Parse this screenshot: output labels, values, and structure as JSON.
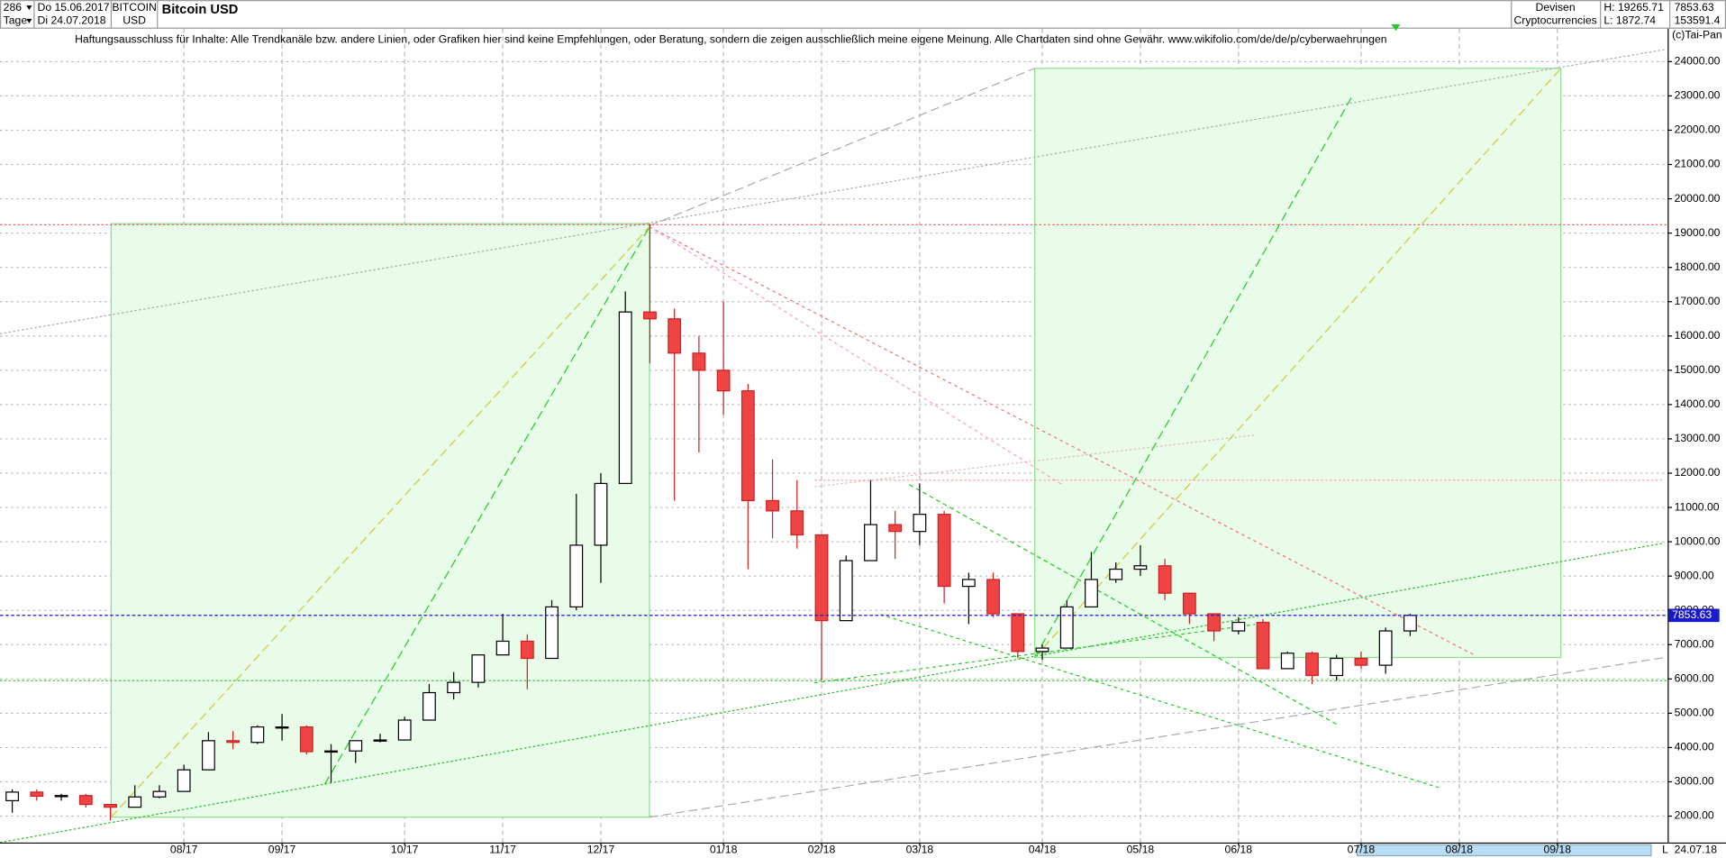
{
  "header": {
    "count": "286",
    "from_date": "Do 15.06.2017",
    "period": "Tage",
    "to_date": "Di 24.07.2018",
    "symbol": "BITCOIN",
    "currency": "USD",
    "name": "Bitcoin USD",
    "group": "Devisen",
    "subgroup": "Cryptocurrencies",
    "high": "H: 19265.71",
    "low": "L: 1872.74",
    "last": "7853.63",
    "volume": "153591.4"
  },
  "footer": {
    "marker": "L",
    "date": "24.07.18"
  },
  "chart_data": {
    "type": "candlestick",
    "annotations": [
      "Haftungsausschluss für Inhalte: Alle Trendkanäle bzw. andere Linien, oder Grafiken hier sind keine Empfehlungen, oder Beratung, sondern die zeigen ausschließlich meine eigene Meinung. Alle Chartdaten sind ohne Gewähr.  www.wikifolio.com/de/de/p/cyberwaehrungen",
      "(c)Tai-Pan"
    ],
    "categories": [
      null,
      null,
      null,
      null,
      null,
      null,
      null,
      "08/17",
      null,
      null,
      null,
      "09/17",
      null,
      null,
      null,
      null,
      "10/17",
      null,
      null,
      null,
      "11/17",
      null,
      null,
      null,
      "12/17",
      null,
      null,
      null,
      null,
      "01/18",
      null,
      null,
      null,
      "02/18",
      null,
      null,
      null,
      "03/18",
      null,
      null,
      null,
      null,
      "04/18",
      null,
      null,
      null,
      "05/18",
      null,
      null,
      null,
      "06/18",
      null,
      null,
      null,
      null,
      "07/18",
      null,
      null,
      null,
      "08/18",
      null,
      null,
      null,
      "09/18",
      null,
      null,
      null,
      null
    ],
    "open": [
      2450,
      2700,
      2580,
      2600,
      2340,
      2260,
      2560,
      2720,
      3350,
      4200,
      4150,
      4600,
      4600,
      3880,
      3900,
      4200,
      4220,
      4800,
      5600,
      5900,
      6700,
      7100,
      6600,
      8100,
      9900,
      11700,
      16700,
      16500,
      15500,
      15000,
      14400,
      11200,
      10900,
      10200,
      7700,
      9450,
      10500,
      10300,
      10800,
      8700,
      8900,
      7900,
      6800,
      6900,
      8100,
      8900,
      9200,
      9300,
      8500,
      7900,
      7400,
      7650,
      6300,
      6750,
      6100,
      6600,
      6400,
      7400,
      null,
      null,
      null,
      null,
      null,
      null,
      null,
      null,
      null,
      null
    ],
    "high": [
      2780,
      2780,
      2650,
      2650,
      2350,
      2900,
      2900,
      3500,
      4450,
      4480,
      4650,
      4980,
      4650,
      4100,
      4200,
      4400,
      4900,
      5850,
      6200,
      6700,
      7900,
      7300,
      8300,
      11400,
      12000,
      17300,
      19265.71,
      16800,
      16000,
      17000,
      14600,
      12400,
      11800,
      10200,
      9600,
      11800,
      10900,
      11700,
      10900,
      9100,
      9100,
      7900,
      7000,
      8300,
      9700,
      9400,
      9900,
      9500,
      8500,
      7900,
      7800,
      7750,
      6800,
      6800,
      6700,
      6800,
      7500,
      7900,
      null,
      null,
      null,
      null,
      null,
      null,
      null,
      null,
      null,
      null
    ],
    "low": [
      2100,
      2450,
      2450,
      2250,
      1872.74,
      2260,
      2520,
      2720,
      3350,
      3950,
      4100,
      4200,
      3800,
      2980,
      3550,
      4150,
      4220,
      4800,
      5400,
      5750,
      6700,
      5700,
      6600,
      8000,
      8800,
      11700,
      15200,
      11200,
      12600,
      13700,
      9200,
      10100,
      9800,
      5950,
      7700,
      9450,
      9500,
      9900,
      8200,
      7600,
      7800,
      6600,
      6550,
      6900,
      8100,
      8800,
      9000,
      8300,
      7600,
      7100,
      7300,
      6300,
      6300,
      5850,
      5950,
      6300,
      6150,
      7250,
      null,
      null,
      null,
      null,
      null,
      null,
      null,
      null,
      null,
      null
    ],
    "close": [
      2700,
      2580,
      2600,
      2340,
      2260,
      2560,
      2720,
      3350,
      4200,
      4150,
      4600,
      4600,
      3880,
      3900,
      4200,
      4220,
      4800,
      5600,
      5900,
      6700,
      7100,
      6600,
      8100,
      9900,
      11700,
      16700,
      16500,
      15500,
      15000,
      14400,
      11200,
      10900,
      10200,
      7700,
      9450,
      10500,
      10300,
      10800,
      8700,
      8900,
      7900,
      6800,
      6900,
      8100,
      8900,
      9200,
      9300,
      8500,
      7900,
      7400,
      7650,
      6300,
      6750,
      6100,
      6600,
      6400,
      7400,
      7853.63,
      null,
      null,
      null,
      null,
      null,
      null,
      null,
      null,
      null,
      null
    ],
    "up_color": "#ffffff",
    "down_color": "#ee4444",
    "last_price": {
      "value": 7853.63,
      "label": "7853.63"
    },
    "ylim": [
      1230,
      24960
    ],
    "yticks": [
      {
        "value": 2000,
        "label": "2000.00"
      },
      {
        "value": 3000,
        "label": "3000.00"
      },
      {
        "value": 4000,
        "label": "4000.00"
      },
      {
        "value": 5000,
        "label": "5000.00"
      },
      {
        "value": 6000,
        "label": "6000.00"
      },
      {
        "value": 7000,
        "label": "7000.00"
      },
      {
        "value": 8000,
        "label": "8000.00"
      },
      {
        "value": 9000,
        "label": "9000.00"
      },
      {
        "value": 10000,
        "label": "10000.00"
      },
      {
        "value": 11000,
        "label": "11000.00"
      },
      {
        "value": 12000,
        "label": "12000.00"
      },
      {
        "value": 13000,
        "label": "13000.00"
      },
      {
        "value": 14000,
        "label": "14000.00"
      },
      {
        "value": 15000,
        "label": "15000.00"
      },
      {
        "value": 16000,
        "label": "16000.00"
      },
      {
        "value": 17000,
        "label": "17000.00"
      },
      {
        "value": 18000,
        "label": "18000.00"
      },
      {
        "value": 19000,
        "label": "19000.00"
      },
      {
        "value": 20000,
        "label": "20000.00"
      },
      {
        "value": 21000,
        "label": "21000.00"
      },
      {
        "value": 22000,
        "label": "22000.00"
      },
      {
        "value": 23000,
        "label": "23000.00"
      },
      {
        "value": 24000,
        "label": "24000.00"
      }
    ],
    "grid": true
  }
}
